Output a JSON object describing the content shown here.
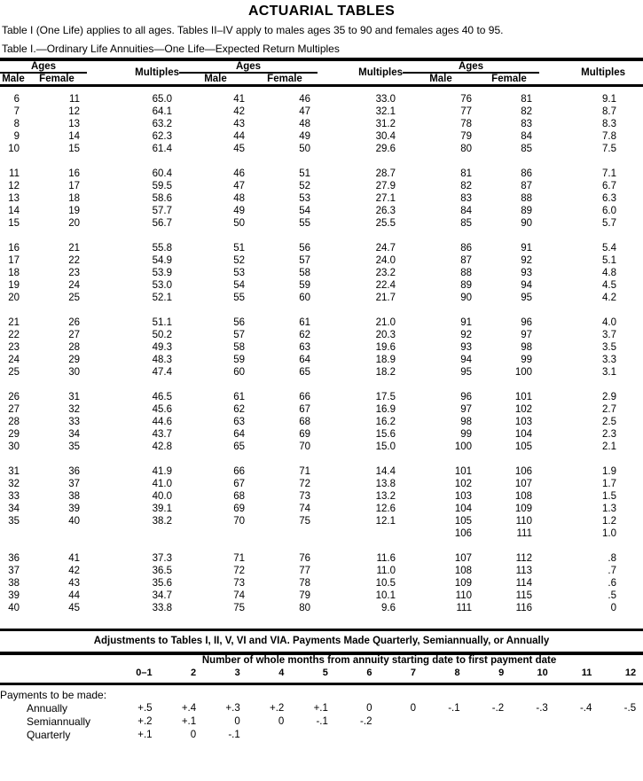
{
  "page": {
    "title": "ACTUARIAL TABLES",
    "intro": "Table I (One Life) applies to all ages. Tables II–IV apply to males ages 35 to 90 and females ages 40 to 95.",
    "table_caption": "Table I.—Ordinary Life Annuities—One Life—Expected Return Multiples"
  },
  "main_table": {
    "group_header": {
      "ages": "Ages",
      "male": "Male",
      "female": "Female",
      "multiples": "Multiples"
    },
    "blocks": [
      [
        [
          "6",
          "11",
          "65.0",
          "41",
          "46",
          "33.0",
          "76",
          "81",
          "9.1"
        ],
        [
          "7",
          "12",
          "64.1",
          "42",
          "47",
          "32.1",
          "77",
          "82",
          "8.7"
        ],
        [
          "8",
          "13",
          "63.2",
          "43",
          "48",
          "31.2",
          "78",
          "83",
          "8.3"
        ],
        [
          "9",
          "14",
          "62.3",
          "44",
          "49",
          "30.4",
          "79",
          "84",
          "7.8"
        ],
        [
          "10",
          "15",
          "61.4",
          "45",
          "50",
          "29.6",
          "80",
          "85",
          "7.5"
        ]
      ],
      [
        [
          "11",
          "16",
          "60.4",
          "46",
          "51",
          "28.7",
          "81",
          "86",
          "7.1"
        ],
        [
          "12",
          "17",
          "59.5",
          "47",
          "52",
          "27.9",
          "82",
          "87",
          "6.7"
        ],
        [
          "13",
          "18",
          "58.6",
          "48",
          "53",
          "27.1",
          "83",
          "88",
          "6.3"
        ],
        [
          "14",
          "19",
          "57.7",
          "49",
          "54",
          "26.3",
          "84",
          "89",
          "6.0"
        ],
        [
          "15",
          "20",
          "56.7",
          "50",
          "55",
          "25.5",
          "85",
          "90",
          "5.7"
        ]
      ],
      [
        [
          "16",
          "21",
          "55.8",
          "51",
          "56",
          "24.7",
          "86",
          "91",
          "5.4"
        ],
        [
          "17",
          "22",
          "54.9",
          "52",
          "57",
          "24.0",
          "87",
          "92",
          "5.1"
        ],
        [
          "18",
          "23",
          "53.9",
          "53",
          "58",
          "23.2",
          "88",
          "93",
          "4.8"
        ],
        [
          "19",
          "24",
          "53.0",
          "54",
          "59",
          "22.4",
          "89",
          "94",
          "4.5"
        ],
        [
          "20",
          "25",
          "52.1",
          "55",
          "60",
          "21.7",
          "90",
          "95",
          "4.2"
        ]
      ],
      [
        [
          "21",
          "26",
          "51.1",
          "56",
          "61",
          "21.0",
          "91",
          "96",
          "4.0"
        ],
        [
          "22",
          "27",
          "50.2",
          "57",
          "62",
          "20.3",
          "92",
          "97",
          "3.7"
        ],
        [
          "23",
          "28",
          "49.3",
          "58",
          "63",
          "19.6",
          "93",
          "98",
          "3.5"
        ],
        [
          "24",
          "29",
          "48.3",
          "59",
          "64",
          "18.9",
          "94",
          "99",
          "3.3"
        ],
        [
          "25",
          "30",
          "47.4",
          "60",
          "65",
          "18.2",
          "95",
          "100",
          "3.1"
        ]
      ],
      [
        [
          "26",
          "31",
          "46.5",
          "61",
          "66",
          "17.5",
          "96",
          "101",
          "2.9"
        ],
        [
          "27",
          "32",
          "45.6",
          "62",
          "67",
          "16.9",
          "97",
          "102",
          "2.7"
        ],
        [
          "28",
          "33",
          "44.6",
          "63",
          "68",
          "16.2",
          "98",
          "103",
          "2.5"
        ],
        [
          "29",
          "34",
          "43.7",
          "64",
          "69",
          "15.6",
          "99",
          "104",
          "2.3"
        ],
        [
          "30",
          "35",
          "42.8",
          "65",
          "70",
          "15.0",
          "100",
          "105",
          "2.1"
        ]
      ],
      [
        [
          "31",
          "36",
          "41.9",
          "66",
          "71",
          "14.4",
          "101",
          "106",
          "1.9"
        ],
        [
          "32",
          "37",
          "41.0",
          "67",
          "72",
          "13.8",
          "102",
          "107",
          "1.7"
        ],
        [
          "33",
          "38",
          "40.0",
          "68",
          "73",
          "13.2",
          "103",
          "108",
          "1.5"
        ],
        [
          "34",
          "39",
          "39.1",
          "69",
          "74",
          "12.6",
          "104",
          "109",
          "1.3"
        ],
        [
          "35",
          "40",
          "38.2",
          "70",
          "75",
          "12.1",
          "105",
          "110",
          "1.2"
        ],
        [
          "",
          "",
          "",
          "",
          "",
          "",
          "106",
          "111",
          "1.0"
        ]
      ],
      [
        [
          "36",
          "41",
          "37.3",
          "71",
          "76",
          "11.6",
          "107",
          "112",
          ".8"
        ],
        [
          "37",
          "42",
          "36.5",
          "72",
          "77",
          "11.0",
          "108",
          "113",
          ".7"
        ],
        [
          "38",
          "43",
          "35.6",
          "73",
          "78",
          "10.5",
          "109",
          "114",
          ".6"
        ],
        [
          "39",
          "44",
          "34.7",
          "74",
          "79",
          "10.1",
          "110",
          "115",
          ".5"
        ],
        [
          "40",
          "45",
          "33.8",
          "75",
          "80",
          "9.6",
          "111",
          "116",
          "0"
        ]
      ]
    ]
  },
  "adjustments": {
    "heading": "Adjustments to Tables I, II, V, VI and VIA. Payments Made Quarterly, Semiannually, or Annually",
    "months_header": "Number of whole months from annuity starting date to first payment date",
    "month_columns": [
      "0–1",
      "2",
      "3",
      "4",
      "5",
      "6",
      "7",
      "8",
      "9",
      "10",
      "11",
      "12"
    ],
    "row_label_header": "Payments to be made:",
    "rows": [
      {
        "label": "Annually",
        "values": [
          "+.5",
          "+.4",
          "+.3",
          "+.2",
          "+.1",
          "0",
          "0",
          "-.1",
          "-.2",
          "-.3",
          "-.4",
          "-.5"
        ]
      },
      {
        "label": "Semiannually",
        "values": [
          "+.2",
          "+.1",
          "0",
          "0",
          "-.1",
          "-.2",
          "",
          "",
          "",
          "",
          "",
          ""
        ]
      },
      {
        "label": "Quarterly",
        "values": [
          "+.1",
          "0",
          "-.1",
          "",
          "",
          "",
          "",
          "",
          "",
          "",
          "",
          ""
        ]
      }
    ]
  }
}
